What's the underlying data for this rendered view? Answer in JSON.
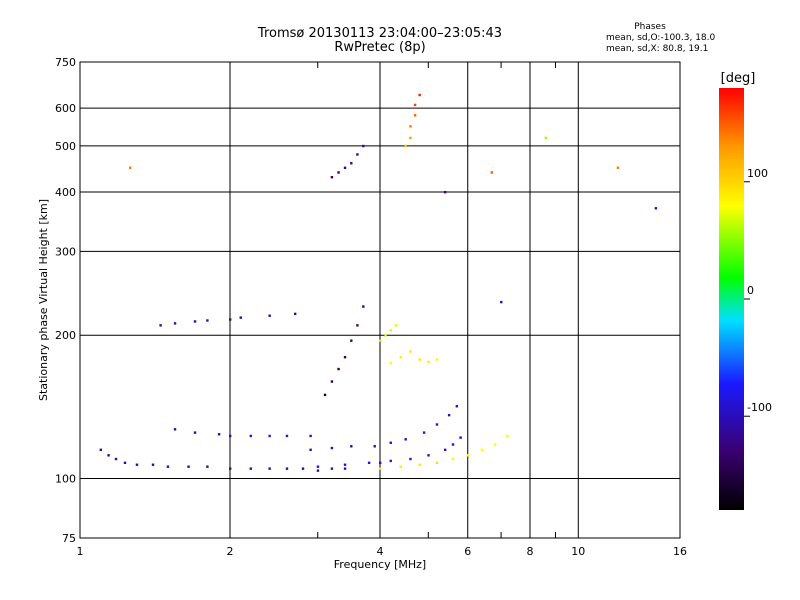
{
  "header": {
    "title_line1": "Tromsø 20130113 23:04:00–23:05:43",
    "title_line2": "RwPretec (8p)"
  },
  "phase_info": {
    "label": "Phases",
    "line_o": "mean, sd,O:-100.3, 18.0",
    "line_x": "mean, sd,X:  80.8, 19.1"
  },
  "colorbar": {
    "title": "[deg]",
    "ticks": [
      "100",
      "0",
      "-100"
    ],
    "tick_values": [
      100,
      0,
      -100
    ],
    "range": [
      -180,
      180
    ],
    "colormap": "rainbow",
    "colors": [
      "#000000",
      "#3a0070",
      "#1a1aff",
      "#00e0ff",
      "#00ff00",
      "#ffff00",
      "#ff9900",
      "#ff0000"
    ]
  },
  "chart_data": {
    "type": "scatter",
    "title": "Tromsø 20130113 23:04:00–23:05:43",
    "subtitle": "RwPretec (8p)",
    "xlabel": "Frequency [MHz]",
    "ylabel": "Stationary phase Virtual Height [km]",
    "xscale": "log",
    "yscale": "log",
    "xlim": [
      1,
      16
    ],
    "ylim": [
      75,
      750
    ],
    "x_ticks": [
      1,
      2,
      4,
      6,
      8,
      10,
      16
    ],
    "x_minor": [
      3,
      5,
      7,
      9
    ],
    "y_ticks": [
      75,
      100,
      200,
      300,
      400,
      500,
      600,
      750
    ],
    "grid": true,
    "point_color_key": "phase_deg",
    "series": [
      {
        "x": [
          1.1,
          1.14,
          1.18,
          1.23,
          1.3,
          1.4,
          1.5,
          1.65,
          1.8,
          2.0,
          2.2,
          2.4,
          2.6,
          2.8,
          3.0,
          3.2,
          3.4
        ],
        "y": [
          115,
          112,
          110,
          108,
          107,
          107,
          106,
          106,
          106,
          105,
          105,
          105,
          105,
          105,
          104,
          105,
          105
        ],
        "phase": [
          -110,
          -115,
          -108,
          -112,
          -106,
          -110,
          -105,
          -112,
          -108,
          -110,
          -104,
          -108,
          -106,
          -110,
          -106,
          -108,
          -104
        ]
      },
      {
        "x": [
          3.0,
          3.4,
          3.8,
          4.0,
          4.2,
          4.6,
          5.0,
          5.4,
          5.6,
          5.8
        ],
        "y": [
          106,
          107,
          108,
          108,
          109,
          110,
          112,
          115,
          118,
          122
        ],
        "phase": [
          -95,
          -90,
          -88,
          -85,
          -82,
          -80,
          -90,
          -92,
          -95,
          -100
        ]
      },
      {
        "x": [
          1.55,
          1.7,
          1.9,
          2.0,
          2.2,
          2.4,
          2.6,
          2.9
        ],
        "y": [
          127,
          125,
          124,
          123,
          123,
          123,
          123,
          123
        ],
        "phase": [
          -105,
          -112,
          -108,
          -90,
          -80,
          -82,
          -86,
          -88
        ]
      },
      {
        "x": [
          2.9,
          3.2,
          3.5,
          3.9,
          4.2,
          4.5,
          4.9,
          5.2,
          5.5,
          5.7
        ],
        "y": [
          115,
          116,
          117,
          117,
          119,
          121,
          125,
          130,
          136,
          142
        ],
        "phase": [
          -110,
          -108,
          -104,
          -100,
          -98,
          -95,
          -93,
          -90,
          -92,
          -94
        ]
      },
      {
        "x": [
          4.0,
          4.4,
          4.8,
          5.2,
          5.6,
          6.0,
          6.4,
          6.8,
          7.2
        ],
        "y": [
          105,
          106,
          107,
          108,
          110,
          112,
          115,
          118,
          123
        ],
        "phase": [
          90,
          88,
          92,
          95,
          85,
          82,
          80,
          78,
          85
        ]
      },
      {
        "x": [
          1.45,
          1.55,
          1.7,
          1.8,
          2.0,
          2.1,
          2.4,
          2.7
        ],
        "y": [
          210,
          212,
          214,
          215,
          216,
          218,
          220,
          222
        ],
        "phase": [
          -110,
          -108,
          -104,
          -100,
          -106,
          -110,
          -108,
          -112
        ]
      },
      {
        "x": [
          3.1,
          3.2,
          3.3,
          3.4,
          3.5,
          3.6,
          3.7
        ],
        "y": [
          150,
          160,
          170,
          180,
          195,
          210,
          230
        ],
        "phase": [
          -150,
          -145,
          -140,
          -135,
          -130,
          -125,
          -120
        ]
      },
      {
        "x": [
          3.2,
          3.3,
          3.4,
          3.5,
          3.6,
          3.7
        ],
        "y": [
          430,
          440,
          450,
          460,
          480,
          500
        ],
        "phase": [
          -130,
          -125,
          -120,
          -115,
          -110,
          -110
        ]
      },
      {
        "x": [
          4.5,
          4.6,
          4.6,
          4.7,
          4.7,
          4.8
        ],
        "y": [
          500,
          520,
          550,
          580,
          610,
          640
        ],
        "phase": [
          110,
          130,
          140,
          150,
          160,
          170
        ]
      },
      {
        "x": [
          4.2,
          4.4,
          4.6,
          4.8,
          5.0,
          5.2
        ],
        "y": [
          175,
          180,
          185,
          178,
          176,
          178
        ],
        "phase": [
          80,
          85,
          90,
          92,
          88,
          85
        ]
      },
      {
        "x": [
          4.0,
          4.1,
          4.2,
          4.3
        ],
        "y": [
          195,
          200,
          205,
          210
        ],
        "phase": [
          60,
          65,
          70,
          72
        ]
      },
      {
        "x": [
          1.26,
          5.4,
          6.7,
          7.0,
          8.6,
          12.0,
          14.3
        ],
        "y": [
          450,
          400,
          440,
          235,
          520,
          450,
          370
        ],
        "phase": [
          140,
          -120,
          150,
          -100,
          55,
          140,
          -90
        ]
      }
    ]
  }
}
